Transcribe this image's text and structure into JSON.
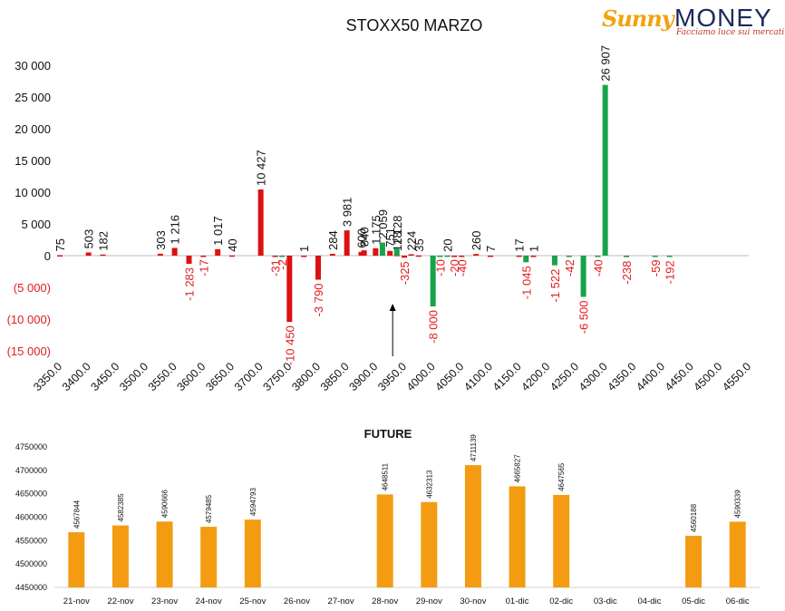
{
  "logo": {
    "brand_script": "Sunny",
    "brand_word": "MONEY",
    "tagline": "Facciamo luce sui mercati"
  },
  "colors": {
    "positive_call": "#dd1111",
    "negative_put": "#16a34a",
    "negative_label": "#e11d1d",
    "future_bar": "#f39c12",
    "arrow": "#000000"
  },
  "chart_data": [
    {
      "type": "bar",
      "title": "STOXX50 MARZO",
      "xlabel": "",
      "ylabel": "",
      "ylim": [
        -15000,
        30000
      ],
      "y_ticks": [
        30000,
        25000,
        20000,
        15000,
        10000,
        5000,
        0,
        -5000,
        -10000,
        -15000
      ],
      "y_tick_labels": [
        "30 000",
        "25 000",
        "20 000",
        "15 000",
        "10 000",
        "5 000",
        "0",
        "(5 000)",
        "(10 000)",
        "(15 000)"
      ],
      "categories": [
        "3350.0",
        "3400.0",
        "3450.0",
        "3500.0",
        "3550.0",
        "3600.0",
        "3650.0",
        "3700.0",
        "3750.0",
        "3800.0",
        "3850.0",
        "3900.0",
        "3950.0",
        "4000.0",
        "4050.0",
        "4100.0",
        "4150.0",
        "4200.0",
        "4250.0",
        "4300.0",
        "4350.0",
        "4400.0",
        "4450.0",
        "4500.0",
        "4550.0"
      ],
      "x_range": [
        3350,
        4550
      ],
      "arrow_at_strike": 3925,
      "series": [
        {
          "values": [
            {
              "strike": 3350,
              "value": 75,
              "label": "75"
            },
            {
              "strike": 3400,
              "value": 503,
              "label": "503"
            },
            {
              "strike": 3425,
              "value": 182,
              "label": "182"
            },
            {
              "strike": 3525,
              "value": 303,
              "label": "303"
            },
            {
              "strike": 3550,
              "value": 1216,
              "label": "1 216"
            },
            {
              "strike": 3625,
              "value": 1017,
              "label": "1 017"
            },
            {
              "strike": 3650,
              "value": 40,
              "label": "40"
            },
            {
              "strike": 3700,
              "value": 10427,
              "label": "10 427"
            },
            {
              "strike": 3775,
              "value": 1,
              "label": "1"
            },
            {
              "strike": 3825,
              "value": 284,
              "label": "284"
            },
            {
              "strike": 3850,
              "value": 3981,
              "label": "3 981"
            },
            {
              "strike": 3875,
              "value": 600,
              "label": "600"
            },
            {
              "strike": 3880,
              "value": 840,
              "label": "840"
            },
            {
              "strike": 3900,
              "value": 1175,
              "label": "1 175"
            },
            {
              "strike": 3925,
              "value": 751,
              "label": "751"
            },
            {
              "strike": 3937,
              "value": 128,
              "label": "128"
            },
            {
              "strike": 3962,
              "value": 224,
              "label": "224"
            },
            {
              "strike": 3975,
              "value": 35,
              "label": "35"
            },
            {
              "strike": 4075,
              "value": 260,
              "label": "260"
            },
            {
              "strike": 4100,
              "value": 7,
              "label": "7"
            },
            {
              "strike": 4150,
              "value": 17,
              "label": "17"
            },
            {
              "strike": 4175,
              "value": 1,
              "label": "1"
            }
          ]
        },
        {
          "values": [
            {
              "strike": 3912,
              "value": 2059,
              "label": "2 059"
            },
            {
              "strike": 3937,
              "value": 1128,
              "label": "1 128"
            },
            {
              "strike": 4025,
              "value": 20,
              "label": "20"
            },
            {
              "strike": 4300,
              "value": 26907,
              "label": "26 907"
            }
          ]
        },
        {
          "values": [
            {
              "strike": 3575,
              "value": -1283,
              "label": "-1 283"
            },
            {
              "strike": 3600,
              "value": -17,
              "label": "-17"
            },
            {
              "strike": 3725,
              "value": -31,
              "label": "-31"
            },
            {
              "strike": 3750,
              "value": -10450,
              "label": "-10 450"
            },
            {
              "strike": 3800,
              "value": -3790,
              "label": "-3 790"
            },
            {
              "strike": 3950,
              "value": -325,
              "label": "-325"
            },
            {
              "strike": 4037,
              "value": -20,
              "label": "-20"
            },
            {
              "strike": 4050,
              "value": -40,
              "label": "-40"
            }
          ]
        },
        {
          "values": [
            {
              "strike": 3737,
              "value": -2,
              "label": "-2"
            },
            {
              "strike": 4000,
              "value": -8000,
              "label": "-8 000"
            },
            {
              "strike": 4012,
              "value": -10,
              "label": "-10"
            },
            {
              "strike": 4162,
              "value": -1045,
              "label": "-1 045"
            },
            {
              "strike": 4212,
              "value": -1522,
              "label": "-1 522"
            },
            {
              "strike": 4237,
              "value": -42,
              "label": "-42"
            },
            {
              "strike": 4262,
              "value": -6500,
              "label": "-6 500"
            },
            {
              "strike": 4287,
              "value": -40,
              "label": "-40"
            },
            {
              "strike": 4337,
              "value": -238,
              "label": "-238"
            },
            {
              "strike": 4387,
              "value": -59,
              "label": "-59"
            },
            {
              "strike": 4412,
              "value": -192,
              "label": "-192"
            }
          ]
        }
      ]
    },
    {
      "type": "bar",
      "title": "FUTURE",
      "xlabel": "",
      "ylabel": "",
      "ylim": [
        4450000,
        4750000
      ],
      "y_ticks": [
        4750000,
        4700000,
        4650000,
        4600000,
        4550000,
        4500000,
        4450000
      ],
      "y_tick_labels": [
        "4750000",
        "4700000",
        "4650000",
        "4600000",
        "4550000",
        "4500000",
        "4450000"
      ],
      "categories": [
        "21-nov",
        "22-nov",
        "23-nov",
        "24-nov",
        "25-nov",
        "26-nov",
        "27-nov",
        "28-nov",
        "29-nov",
        "30-nov",
        "01-dic",
        "02-dic",
        "03-dic",
        "04-dic",
        "05-dic",
        "06-dic"
      ],
      "values": [
        4567844,
        4582385,
        4590666,
        4579485,
        4594793,
        null,
        null,
        4648511,
        4632313,
        4711139,
        4665827,
        4647565,
        null,
        null,
        4560188,
        4590339
      ],
      "value_labels": [
        "4567844",
        "4582385",
        "4590666",
        "4579485",
        "4594793",
        "",
        "",
        "4648511",
        "4632313",
        "4711139",
        "4665827",
        "4647565",
        "",
        "",
        "4560188",
        "4590339"
      ]
    }
  ]
}
